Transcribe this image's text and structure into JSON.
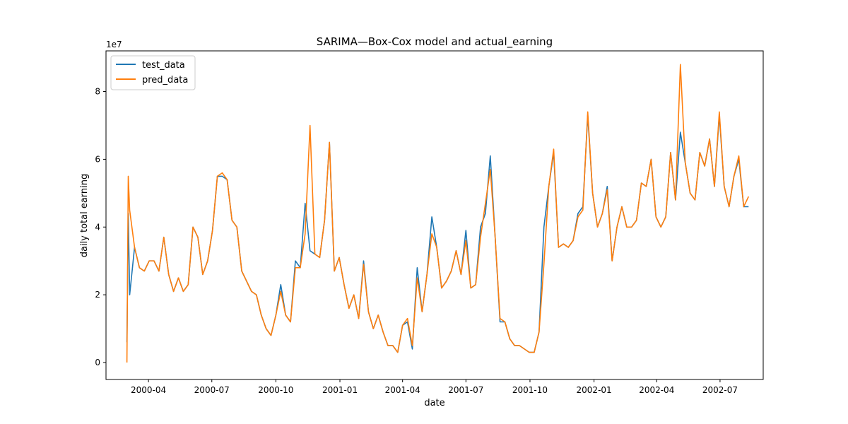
{
  "chart_data": {
    "type": "line",
    "title": "SARIMA—Box-Cox model and actual_earning",
    "xlabel": "date",
    "ylabel": "daily total earning",
    "y_scale_label": "1e7",
    "ylim": [
      -5000000,
      92000000
    ],
    "y_ticks": [
      {
        "value": 0,
        "label": "0"
      },
      {
        "value": 20000000,
        "label": "2"
      },
      {
        "value": 40000000,
        "label": "4"
      },
      {
        "value": 60000000,
        "label": "6"
      },
      {
        "value": 80000000,
        "label": "8"
      }
    ],
    "xlim": [
      "2000-01-31",
      "2002-09-01"
    ],
    "x_ticks": [
      "2000-04",
      "2000-07",
      "2000-10",
      "2001-01",
      "2001-04",
      "2001-07",
      "2001-10",
      "2002-01",
      "2002-04",
      "2002-07"
    ],
    "legend_position": "top-left",
    "grid": false,
    "series": [
      {
        "name": "test_data",
        "color": "#1f77b4",
        "x": [
          "2000-03-01",
          "2000-03-03",
          "2000-03-05",
          "2000-03-12",
          "2000-03-19",
          "2000-03-26",
          "2000-04-02",
          "2000-04-09",
          "2000-04-16",
          "2000-04-23",
          "2000-04-30",
          "2000-05-07",
          "2000-05-14",
          "2000-05-21",
          "2000-05-28",
          "2000-06-04",
          "2000-06-11",
          "2000-06-18",
          "2000-06-25",
          "2000-07-02",
          "2000-07-09",
          "2000-07-16",
          "2000-07-23",
          "2000-07-30",
          "2000-08-06",
          "2000-08-13",
          "2000-08-20",
          "2000-08-27",
          "2000-09-03",
          "2000-09-10",
          "2000-09-17",
          "2000-09-24",
          "2000-10-01",
          "2000-10-08",
          "2000-10-15",
          "2000-10-22",
          "2000-10-29",
          "2000-11-05",
          "2000-11-12",
          "2000-11-19",
          "2000-11-26",
          "2000-12-03",
          "2000-12-10",
          "2000-12-17",
          "2000-12-24",
          "2000-12-31",
          "2001-01-07",
          "2001-01-14",
          "2001-01-21",
          "2001-01-28",
          "2001-02-04",
          "2001-02-11",
          "2001-02-18",
          "2001-02-25",
          "2001-03-04",
          "2001-03-11",
          "2001-03-18",
          "2001-03-25",
          "2001-04-01",
          "2001-04-08",
          "2001-04-15",
          "2001-04-22",
          "2001-04-29",
          "2001-05-06",
          "2001-05-13",
          "2001-05-20",
          "2001-05-27",
          "2001-06-03",
          "2001-06-10",
          "2001-06-17",
          "2001-06-24",
          "2001-07-01",
          "2001-07-08",
          "2001-07-15",
          "2001-07-22",
          "2001-07-29",
          "2001-08-05",
          "2001-08-12",
          "2001-08-19",
          "2001-08-26",
          "2001-09-02",
          "2001-09-09",
          "2001-09-16",
          "2001-09-23",
          "2001-09-30",
          "2001-10-07",
          "2001-10-14",
          "2001-10-21",
          "2001-10-28",
          "2001-11-04",
          "2001-11-11",
          "2001-11-18",
          "2001-11-25",
          "2001-12-02",
          "2001-12-09",
          "2001-12-16",
          "2001-12-23",
          "2001-12-30",
          "2002-01-06",
          "2002-01-13",
          "2002-01-20",
          "2002-01-27",
          "2002-02-03",
          "2002-02-10",
          "2002-02-17",
          "2002-02-24",
          "2002-03-03",
          "2002-03-10",
          "2002-03-17",
          "2002-03-24",
          "2002-03-31",
          "2002-04-07",
          "2002-04-14",
          "2002-04-21",
          "2002-04-28",
          "2002-05-05",
          "2002-05-12",
          "2002-05-19",
          "2002-05-26",
          "2002-06-02",
          "2002-06-09",
          "2002-06-16",
          "2002-06-23",
          "2002-06-30",
          "2002-07-07",
          "2002-07-14",
          "2002-07-21",
          "2002-07-28",
          "2002-08-04",
          "2002-08-11"
        ],
        "values": [
          6000000,
          44000000,
          20000000,
          34000000,
          28000000,
          27000000,
          30000000,
          30000000,
          27000000,
          37000000,
          26000000,
          21000000,
          25000000,
          21000000,
          23000000,
          40000000,
          37000000,
          26000000,
          30000000,
          39000000,
          55000000,
          55000000,
          54000000,
          42000000,
          40000000,
          27000000,
          24000000,
          21000000,
          20000000,
          14000000,
          10000000,
          8000000,
          14000000,
          23000000,
          14000000,
          12000000,
          30000000,
          28000000,
          47000000,
          33000000,
          32000000,
          31000000,
          42000000,
          65000000,
          27000000,
          31000000,
          23000000,
          16000000,
          20000000,
          13000000,
          30000000,
          15000000,
          10000000,
          14000000,
          9000000,
          5000000,
          5000000,
          3000000,
          11000000,
          12000000,
          4000000,
          28000000,
          15000000,
          26000000,
          43000000,
          34000000,
          22000000,
          24000000,
          27000000,
          33000000,
          26000000,
          39000000,
          22000000,
          23000000,
          40000000,
          44000000,
          61000000,
          37000000,
          12000000,
          12000000,
          7000000,
          5000000,
          5000000,
          4000000,
          3000000,
          3000000,
          9000000,
          40000000,
          52000000,
          62000000,
          34000000,
          35000000,
          34000000,
          36000000,
          44000000,
          46000000,
          73000000,
          50000000,
          40000000,
          44000000,
          52000000,
          30000000,
          40000000,
          46000000,
          40000000,
          40000000,
          42000000,
          53000000,
          52000000,
          60000000,
          43000000,
          40000000,
          43000000,
          62000000,
          48000000,
          68000000,
          59000000,
          50000000,
          48000000,
          62000000,
          58000000,
          66000000,
          52000000,
          73000000,
          52000000,
          46000000,
          55000000,
          60000000,
          46000000,
          46000000
        ]
      },
      {
        "name": "pred_data",
        "color": "#ff7f0e",
        "x": [
          "2000-03-01",
          "2000-03-03",
          "2000-03-05",
          "2000-03-12",
          "2000-03-19",
          "2000-03-26",
          "2000-04-02",
          "2000-04-09",
          "2000-04-16",
          "2000-04-23",
          "2000-04-30",
          "2000-05-07",
          "2000-05-14",
          "2000-05-21",
          "2000-05-28",
          "2000-06-04",
          "2000-06-11",
          "2000-06-18",
          "2000-06-25",
          "2000-07-02",
          "2000-07-09",
          "2000-07-16",
          "2000-07-23",
          "2000-07-30",
          "2000-08-06",
          "2000-08-13",
          "2000-08-20",
          "2000-08-27",
          "2000-09-03",
          "2000-09-10",
          "2000-09-17",
          "2000-09-24",
          "2000-10-01",
          "2000-10-08",
          "2000-10-15",
          "2000-10-22",
          "2000-10-29",
          "2000-11-05",
          "2000-11-12",
          "2000-11-19",
          "2000-11-26",
          "2000-12-03",
          "2000-12-10",
          "2000-12-17",
          "2000-12-24",
          "2000-12-31",
          "2001-01-07",
          "2001-01-14",
          "2001-01-21",
          "2001-01-28",
          "2001-02-04",
          "2001-02-11",
          "2001-02-18",
          "2001-02-25",
          "2001-03-04",
          "2001-03-11",
          "2001-03-18",
          "2001-03-25",
          "2001-04-01",
          "2001-04-08",
          "2001-04-15",
          "2001-04-22",
          "2001-04-29",
          "2001-05-06",
          "2001-05-13",
          "2001-05-20",
          "2001-05-27",
          "2001-06-03",
          "2001-06-10",
          "2001-06-17",
          "2001-06-24",
          "2001-07-01",
          "2001-07-08",
          "2001-07-15",
          "2001-07-22",
          "2001-07-29",
          "2001-08-05",
          "2001-08-12",
          "2001-08-19",
          "2001-08-26",
          "2001-09-02",
          "2001-09-09",
          "2001-09-16",
          "2001-09-23",
          "2001-09-30",
          "2001-10-07",
          "2001-10-14",
          "2001-10-21",
          "2001-10-28",
          "2001-11-04",
          "2001-11-11",
          "2001-11-18",
          "2001-11-25",
          "2001-12-02",
          "2001-12-09",
          "2001-12-16",
          "2001-12-23",
          "2001-12-30",
          "2002-01-06",
          "2002-01-13",
          "2002-01-20",
          "2002-01-27",
          "2002-02-03",
          "2002-02-10",
          "2002-02-17",
          "2002-02-24",
          "2002-03-03",
          "2002-03-10",
          "2002-03-17",
          "2002-03-24",
          "2002-03-31",
          "2002-04-07",
          "2002-04-14",
          "2002-04-21",
          "2002-04-28",
          "2002-05-05",
          "2002-05-12",
          "2002-05-19",
          "2002-05-26",
          "2002-06-02",
          "2002-06-09",
          "2002-06-16",
          "2002-06-23",
          "2002-06-30",
          "2002-07-07",
          "2002-07-14",
          "2002-07-21",
          "2002-07-28",
          "2002-08-04",
          "2002-08-11"
        ],
        "values": [
          0,
          55000000,
          45000000,
          34000000,
          28000000,
          27000000,
          30000000,
          30000000,
          27000000,
          37000000,
          26000000,
          21000000,
          25000000,
          21000000,
          23000000,
          40000000,
          37000000,
          26000000,
          30000000,
          39000000,
          55000000,
          56000000,
          54000000,
          42000000,
          40000000,
          27000000,
          24000000,
          21000000,
          20000000,
          14000000,
          10000000,
          8000000,
          14000000,
          21000000,
          14000000,
          12000000,
          28000000,
          28000000,
          38000000,
          70000000,
          32000000,
          31000000,
          42000000,
          65000000,
          27000000,
          31000000,
          23000000,
          16000000,
          20000000,
          13000000,
          29000000,
          15000000,
          10000000,
          14000000,
          9000000,
          5000000,
          5000000,
          3000000,
          11000000,
          13000000,
          5000000,
          25000000,
          15000000,
          26000000,
          38000000,
          34000000,
          22000000,
          24000000,
          27000000,
          33000000,
          26000000,
          36000000,
          22000000,
          23000000,
          37000000,
          47000000,
          57000000,
          37000000,
          13000000,
          12000000,
          7000000,
          5000000,
          5000000,
          4000000,
          3000000,
          3000000,
          9000000,
          29000000,
          52000000,
          63000000,
          34000000,
          35000000,
          34000000,
          36000000,
          43000000,
          45000000,
          74000000,
          50000000,
          40000000,
          44000000,
          51000000,
          30000000,
          40000000,
          46000000,
          40000000,
          40000000,
          42000000,
          53000000,
          52000000,
          60000000,
          43000000,
          40000000,
          43000000,
          62000000,
          48000000,
          88000000,
          59000000,
          50000000,
          48000000,
          62000000,
          58000000,
          66000000,
          52000000,
          74000000,
          52000000,
          46000000,
          55000000,
          61000000,
          46000000,
          49000000
        ]
      }
    ]
  }
}
